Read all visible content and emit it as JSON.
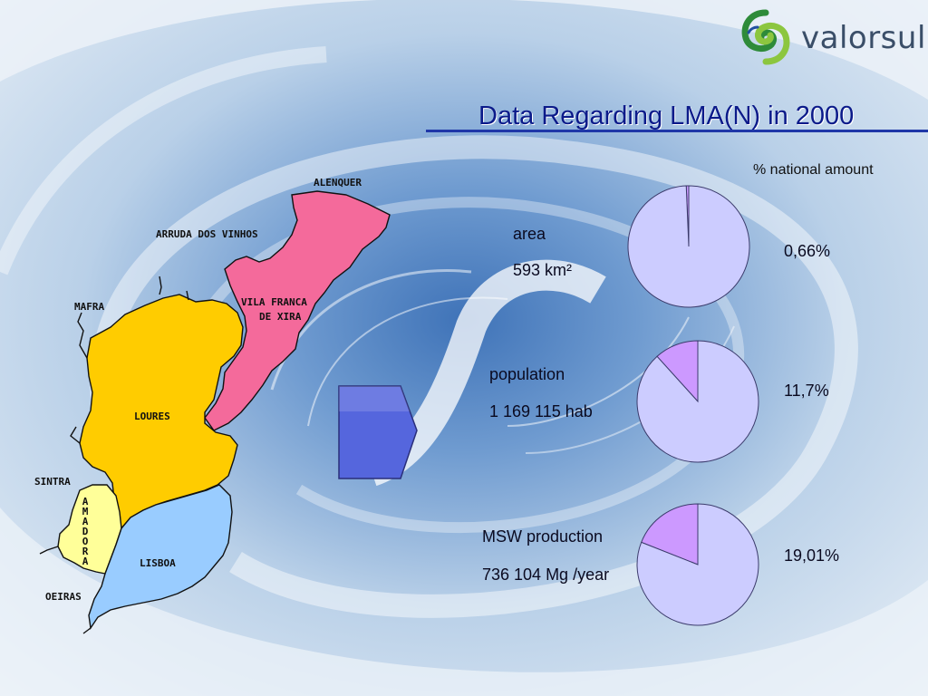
{
  "header": {
    "brand": "valorsul",
    "title": "Data Regarding LMA(N) in 2000"
  },
  "legend_note": "% national amount",
  "map": {
    "regions": [
      {
        "name": "ALENQUER"
      },
      {
        "name": "ARRUDA DOS VINHOS"
      },
      {
        "name": "MAFRA"
      },
      {
        "name": "VILA FRANCA DE XIRA",
        "line1": "VILA FRANCA",
        "line2": "DE XIRA",
        "color": "#f46a9b"
      },
      {
        "name": "LOURES",
        "color": "#ffcc00"
      },
      {
        "name": "SINTRA"
      },
      {
        "name": "AMADORA",
        "color": "#ffff99"
      },
      {
        "name": "LISBOA",
        "color": "#99ccff"
      },
      {
        "name": "OEIRAS"
      }
    ]
  },
  "stats": [
    {
      "label": "area",
      "value": "593 km²",
      "percent_text": "0,66%"
    },
    {
      "label": "population",
      "value": "1 169 115 hab",
      "percent_text": "11,7%"
    },
    {
      "label": "MSW production",
      "value": "736 104 Mg /year",
      "percent_text": "19,01%"
    }
  ],
  "chart_data": [
    {
      "type": "pie",
      "title": "area",
      "series": [
        {
          "values": [
            0.66,
            99.34
          ]
        }
      ],
      "colors": [
        "#cc99ff",
        "#ccccff"
      ]
    },
    {
      "type": "pie",
      "title": "population",
      "series": [
        {
          "values": [
            11.7,
            88.3
          ]
        }
      ],
      "colors": [
        "#cc99ff",
        "#ccccff"
      ]
    },
    {
      "type": "pie",
      "title": "MSW production",
      "series": [
        {
          "values": [
            19.01,
            80.99
          ]
        }
      ],
      "colors": [
        "#cc99ff",
        "#ccccff"
      ]
    }
  ],
  "colors": {
    "title": "#0b1a8a",
    "arrow": "#5566dd",
    "pie_main": "#ccccff",
    "pie_slice": "#cc99ff"
  }
}
